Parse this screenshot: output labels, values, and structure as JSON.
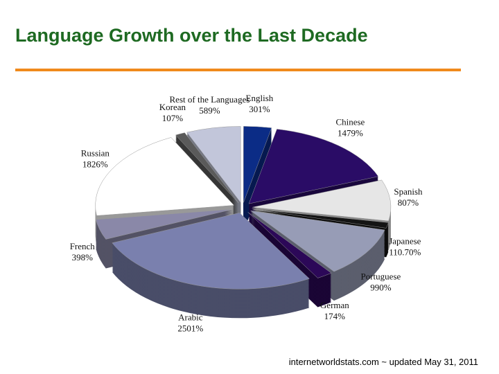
{
  "chart_data": {
    "type": "pie",
    "title": "Language Growth over the Last Decade",
    "categories": [
      "English",
      "Chinese",
      "Spanish",
      "Japanese",
      "Portuguese",
      "German",
      "Arabic",
      "French",
      "Russian",
      "Korean",
      "Rest of the Languages"
    ],
    "values": [
      301,
      1479,
      807,
      110.7,
      990,
      174,
      2501,
      398,
      1826,
      107,
      589
    ],
    "value_labels": [
      "301%",
      "1479%",
      "807%",
      "110.70%",
      "990%",
      "174%",
      "2501%",
      "398%",
      "1826%",
      "107%",
      "589%"
    ],
    "colors": [
      "#0b2c86",
      "#2a0c66",
      "#e6e6e6",
      "#141414",
      "#979cb6",
      "#2c0858",
      "#7a80ae",
      "#8a88a8",
      "#ffffff",
      "#5a5a5a",
      "#c2c6da"
    ],
    "source": "internetworldstats.com ~ updated May 31, 2011"
  }
}
